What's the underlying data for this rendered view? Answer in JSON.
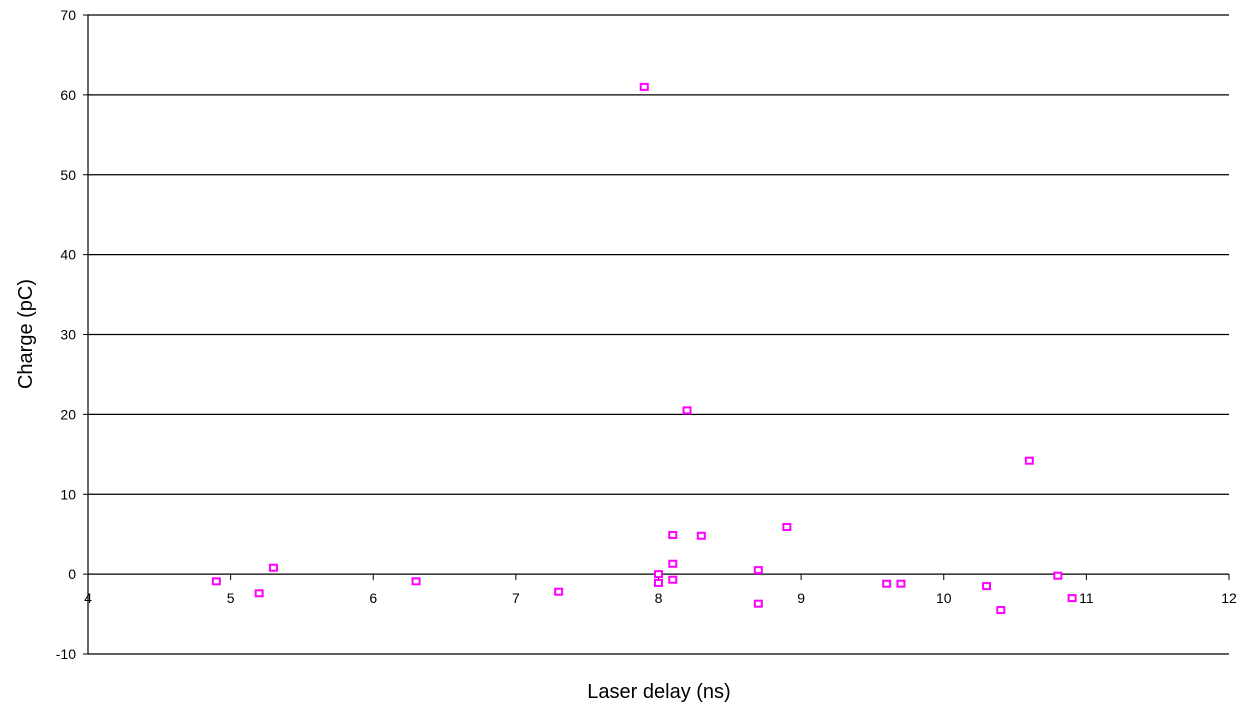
{
  "chart_data": {
    "type": "scatter",
    "title": "",
    "xlabel": "Laser delay (ns)",
    "ylabel": "Charge (pC)",
    "xlim": [
      4,
      12
    ],
    "ylim": [
      -10,
      70
    ],
    "xticks": [
      4,
      5,
      6,
      7,
      8,
      9,
      10,
      11,
      12
    ],
    "yticks": [
      -10,
      0,
      10,
      20,
      30,
      40,
      50,
      60,
      70
    ],
    "grid": "horizontal",
    "marker_color": "#ff00ff",
    "series": [
      {
        "points": [
          {
            "x": 4.9,
            "y": -0.9
          },
          {
            "x": 5.2,
            "y": -2.4
          },
          {
            "x": 5.3,
            "y": 0.8
          },
          {
            "x": 6.3,
            "y": -0.9
          },
          {
            "x": 7.3,
            "y": -2.2
          },
          {
            "x": 7.9,
            "y": 61.0
          },
          {
            "x": 8.0,
            "y": 0.0
          },
          {
            "x": 8.0,
            "y": -1.1
          },
          {
            "x": 8.1,
            "y": 4.9
          },
          {
            "x": 8.1,
            "y": 1.3
          },
          {
            "x": 8.1,
            "y": -0.7
          },
          {
            "x": 8.2,
            "y": 20.5
          },
          {
            "x": 8.3,
            "y": 4.8
          },
          {
            "x": 8.7,
            "y": 0.5
          },
          {
            "x": 8.7,
            "y": -3.7
          },
          {
            "x": 8.9,
            "y": 5.9
          },
          {
            "x": 9.6,
            "y": -1.2
          },
          {
            "x": 9.7,
            "y": -1.2
          },
          {
            "x": 10.3,
            "y": -1.5
          },
          {
            "x": 10.4,
            "y": -4.5
          },
          {
            "x": 10.6,
            "y": 14.2
          },
          {
            "x": 10.8,
            "y": -0.2
          },
          {
            "x": 10.9,
            "y": -3.0
          }
        ]
      }
    ]
  }
}
